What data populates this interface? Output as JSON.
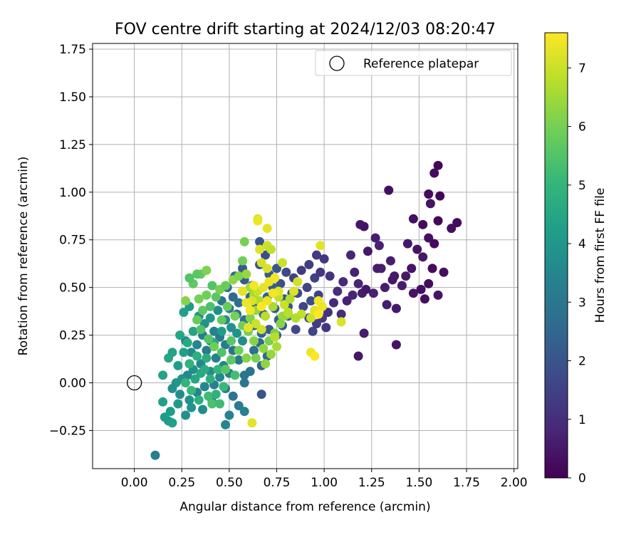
{
  "chart_data": {
    "type": "scatter",
    "title": "FOV centre drift starting at 2024/12/03 08:20:47",
    "xlabel": "Angular distance from reference (arcmin)",
    "ylabel": "Rotation from reference (arcmin)",
    "xlim": [
      -0.22,
      2.02
    ],
    "ylim": [
      -0.45,
      1.78
    ],
    "xticks": [
      0.0,
      0.25,
      0.5,
      0.75,
      1.0,
      1.25,
      1.5,
      1.75,
      2.0
    ],
    "xtick_labels": [
      "0.00",
      "0.25",
      "0.50",
      "0.75",
      "1.00",
      "1.25",
      "1.50",
      "1.75",
      "2.00"
    ],
    "yticks": [
      -0.25,
      0.0,
      0.25,
      0.5,
      0.75,
      1.0,
      1.25,
      1.5,
      1.75
    ],
    "ytick_labels": [
      "−0.25",
      "0.00",
      "0.25",
      "0.50",
      "0.75",
      "1.00",
      "1.25",
      "1.50",
      "1.75"
    ],
    "grid": true,
    "legend": {
      "position": "top-right",
      "entries": [
        "Reference platepar"
      ]
    },
    "reference_point": {
      "x": 0.0,
      "y": 0.0
    },
    "colorbar": {
      "label": "Hours from first FF file",
      "colormap": "viridis",
      "range": [
        0,
        7.6
      ],
      "ticks": [
        0,
        1,
        2,
        3,
        4,
        5,
        6,
        7
      ],
      "tick_labels": [
        "0",
        "1",
        "2",
        "3",
        "4",
        "5",
        "6",
        "7"
      ]
    },
    "points": [
      [
        1.6,
        1.14,
        0.1
      ],
      [
        1.58,
        1.1,
        0.2
      ],
      [
        1.34,
        1.01,
        0.3
      ],
      [
        1.55,
        0.99,
        0.2
      ],
      [
        1.61,
        0.98,
        0.1
      ],
      [
        1.56,
        0.94,
        0.4
      ],
      [
        1.47,
        0.86,
        0.3
      ],
      [
        1.52,
        0.83,
        0.2
      ],
      [
        1.6,
        0.85,
        0.1
      ],
      [
        1.7,
        0.84,
        0.2
      ],
      [
        1.67,
        0.81,
        0.3
      ],
      [
        1.19,
        0.83,
        0.5
      ],
      [
        1.21,
        0.82,
        0.4
      ],
      [
        1.27,
        0.76,
        0.6
      ],
      [
        1.44,
        0.73,
        0.5
      ],
      [
        1.55,
        0.76,
        0.3
      ],
      [
        1.58,
        0.73,
        0.2
      ],
      [
        1.49,
        0.7,
        0.4
      ],
      [
        1.52,
        0.66,
        0.5
      ],
      [
        1.29,
        0.72,
        0.7
      ],
      [
        1.35,
        0.64,
        0.6
      ],
      [
        1.23,
        0.69,
        0.5
      ],
      [
        1.14,
        0.67,
        0.8
      ],
      [
        1.16,
        0.58,
        0.7
      ],
      [
        1.28,
        0.6,
        0.6
      ],
      [
        1.37,
        0.56,
        0.5
      ],
      [
        1.46,
        0.6,
        0.4
      ],
      [
        1.41,
        0.51,
        0.6
      ],
      [
        1.51,
        0.49,
        0.3
      ],
      [
        1.55,
        0.52,
        0.2
      ],
      [
        1.6,
        0.46,
        0.4
      ],
      [
        1.63,
        0.58,
        0.3
      ],
      [
        1.57,
        0.6,
        0.2
      ],
      [
        1.2,
        0.47,
        0.6
      ],
      [
        1.26,
        0.47,
        0.7
      ],
      [
        1.22,
        0.49,
        0.5
      ],
      [
        1.32,
        0.5,
        0.6
      ],
      [
        1.36,
        0.54,
        0.5
      ],
      [
        1.18,
        0.52,
        0.8
      ],
      [
        1.1,
        0.53,
        0.9
      ],
      [
        1.07,
        0.48,
        1.0
      ],
      [
        1.15,
        0.46,
        0.8
      ],
      [
        1.12,
        0.43,
        0.7
      ],
      [
        1.33,
        0.41,
        0.6
      ],
      [
        1.38,
        0.39,
        0.5
      ],
      [
        1.05,
        0.42,
        0.9
      ],
      [
        1.02,
        0.37,
        1.1
      ],
      [
        1.09,
        0.36,
        1.0
      ],
      [
        1.21,
        0.26,
        0.6
      ],
      [
        1.38,
        0.2,
        0.4
      ],
      [
        1.18,
        0.14,
        0.5
      ],
      [
        1.47,
        0.47,
        0.4
      ],
      [
        1.53,
        0.44,
        0.3
      ],
      [
        1.43,
        0.56,
        0.5
      ],
      [
        1.3,
        0.6,
        0.6
      ],
      [
        0.96,
        0.67,
        1.3
      ],
      [
        1.0,
        0.65,
        1.2
      ],
      [
        0.92,
        0.62,
        1.4
      ],
      [
        0.88,
        0.59,
        1.3
      ],
      [
        0.95,
        0.55,
        1.5
      ],
      [
        0.98,
        0.58,
        1.2
      ],
      [
        1.03,
        0.56,
        1.1
      ],
      [
        0.84,
        0.55,
        1.5
      ],
      [
        0.91,
        0.5,
        1.6
      ],
      [
        0.86,
        0.47,
        1.7
      ],
      [
        0.97,
        0.46,
        1.5
      ],
      [
        0.93,
        0.43,
        1.8
      ],
      [
        0.89,
        0.4,
        1.6
      ],
      [
        0.95,
        0.38,
        1.4
      ],
      [
        0.99,
        0.34,
        1.3
      ],
      [
        0.92,
        0.34,
        1.5
      ],
      [
        0.85,
        0.28,
        1.7
      ],
      [
        0.94,
        0.27,
        1.6
      ],
      [
        1.01,
        0.29,
        1.2
      ],
      [
        0.96,
        0.31,
        1.4
      ],
      [
        0.81,
        0.4,
        1.9
      ],
      [
        0.79,
        0.44,
        2.0
      ],
      [
        0.83,
        0.47,
        1.8
      ],
      [
        0.77,
        0.52,
        1.9
      ],
      [
        0.8,
        0.58,
        1.7
      ],
      [
        0.75,
        0.6,
        2.1
      ],
      [
        0.71,
        0.57,
        2.2
      ],
      [
        0.66,
        0.62,
        2.0
      ],
      [
        0.69,
        0.67,
        1.8
      ],
      [
        0.66,
        0.74,
        2.0
      ],
      [
        0.73,
        0.5,
        2.3
      ],
      [
        0.7,
        0.45,
        2.4
      ],
      [
        0.74,
        0.39,
        2.2
      ],
      [
        0.68,
        0.36,
        2.5
      ],
      [
        0.64,
        0.4,
        2.3
      ],
      [
        0.61,
        0.45,
        2.6
      ],
      [
        0.62,
        0.51,
        2.4
      ],
      [
        0.58,
        0.54,
        2.2
      ],
      [
        0.57,
        0.6,
        2.1
      ],
      [
        0.53,
        0.56,
        2.5
      ],
      [
        0.49,
        0.5,
        2.7
      ],
      [
        0.52,
        0.45,
        2.6
      ],
      [
        0.55,
        0.42,
        2.8
      ],
      [
        0.46,
        0.43,
        2.9
      ],
      [
        0.5,
        0.39,
        3.0
      ],
      [
        0.54,
        0.36,
        2.7
      ],
      [
        0.58,
        0.33,
        2.8
      ],
      [
        0.63,
        0.3,
        2.5
      ],
      [
        0.67,
        0.26,
        2.4
      ],
      [
        0.71,
        0.28,
        2.2
      ],
      [
        0.75,
        0.25,
        2.1
      ],
      [
        0.78,
        0.3,
        2.0
      ],
      [
        0.81,
        0.35,
        1.9
      ],
      [
        0.76,
        0.33,
        2.3
      ],
      [
        0.66,
        0.21,
        2.6
      ],
      [
        0.63,
        0.17,
        2.8
      ],
      [
        0.7,
        0.14,
        2.6
      ],
      [
        0.67,
        0.09,
        2.4
      ],
      [
        0.61,
        0.06,
        2.9
      ],
      [
        0.58,
        0.04,
        3.0
      ],
      [
        0.55,
        0.12,
        3.1
      ],
      [
        0.52,
        0.17,
        2.9
      ],
      [
        0.48,
        0.2,
        3.2
      ],
      [
        0.45,
        0.24,
        3.0
      ],
      [
        0.42,
        0.27,
        3.3
      ],
      [
        0.4,
        0.22,
        3.4
      ],
      [
        0.36,
        0.25,
        3.2
      ],
      [
        0.33,
        0.2,
        3.5
      ],
      [
        0.3,
        0.16,
        3.6
      ],
      [
        0.27,
        0.22,
        3.4
      ],
      [
        0.38,
        0.17,
        3.1
      ],
      [
        0.43,
        0.13,
        3.3
      ],
      [
        0.47,
        0.09,
        3.5
      ],
      [
        0.5,
        0.05,
        3.2
      ],
      [
        0.45,
        0.03,
        3.6
      ],
      [
        0.4,
        0.06,
        3.7
      ],
      [
        0.35,
        0.1,
        3.5
      ],
      [
        0.31,
        0.07,
        3.8
      ],
      [
        0.28,
        0.04,
        3.6
      ],
      [
        0.25,
        0.02,
        3.9
      ],
      [
        0.22,
        0.0,
        4.0
      ],
      [
        0.2,
        -0.03,
        3.8
      ],
      [
        0.24,
        -0.06,
        3.7
      ],
      [
        0.29,
        -0.09,
        3.9
      ],
      [
        0.33,
        -0.05,
        3.4
      ],
      [
        0.37,
        -0.02,
        3.5
      ],
      [
        0.42,
        -0.01,
        3.3
      ],
      [
        0.48,
        -0.03,
        3.1
      ],
      [
        0.52,
        -0.07,
        3.0
      ],
      [
        0.55,
        -0.12,
        3.2
      ],
      [
        0.58,
        -0.15,
        3.3
      ],
      [
        0.5,
        -0.17,
        3.4
      ],
      [
        0.48,
        -0.22,
        3.5
      ],
      [
        0.41,
        -0.1,
        3.6
      ],
      [
        0.36,
        -0.14,
        3.7
      ],
      [
        0.3,
        -0.13,
        3.9
      ],
      [
        0.27,
        -0.17,
        3.8
      ],
      [
        0.23,
        -0.11,
        4.1
      ],
      [
        0.19,
        -0.15,
        4.2
      ],
      [
        0.15,
        -0.1,
        4.3
      ],
      [
        0.16,
        -0.18,
        4.2
      ],
      [
        0.18,
        -0.2,
        4.1
      ],
      [
        0.2,
        -0.21,
        4.3
      ],
      [
        0.15,
        0.04,
        4.4
      ],
      [
        0.18,
        0.13,
        4.5
      ],
      [
        0.2,
        0.16,
        4.4
      ],
      [
        0.23,
        0.09,
        4.2
      ],
      [
        0.26,
        0.16,
        4.3
      ],
      [
        0.24,
        0.25,
        4.5
      ],
      [
        0.28,
        0.21,
        4.6
      ],
      [
        0.31,
        0.27,
        4.4
      ],
      [
        0.26,
        0.37,
        4.3
      ],
      [
        0.29,
        0.4,
        4.1
      ],
      [
        0.34,
        0.35,
        3.9
      ],
      [
        0.37,
        0.31,
        3.8
      ],
      [
        0.4,
        0.34,
        4.0
      ],
      [
        0.44,
        0.38,
        3.7
      ],
      [
        0.48,
        0.33,
        3.6
      ],
      [
        0.51,
        0.29,
        3.8
      ],
      [
        0.54,
        0.26,
        3.9
      ],
      [
        0.57,
        0.22,
        3.7
      ],
      [
        0.46,
        0.27,
        4.2
      ],
      [
        0.42,
        0.21,
        4.6
      ],
      [
        0.38,
        0.13,
        4.7
      ],
      [
        0.33,
        0.14,
        4.8
      ],
      [
        0.29,
        0.1,
        4.9
      ],
      [
        0.35,
        0.05,
        4.6
      ],
      [
        0.4,
        0.02,
        4.8
      ],
      [
        0.44,
        0.07,
        5.0
      ],
      [
        0.37,
        0.07,
        4.7
      ],
      [
        0.32,
        0.02,
        4.5
      ],
      [
        0.27,
        0.0,
        5.0
      ],
      [
        0.3,
        -0.04,
        5.1
      ],
      [
        0.34,
        -0.09,
        4.8
      ],
      [
        0.39,
        -0.07,
        5.2
      ],
      [
        0.43,
        -0.06,
        4.9
      ],
      [
        0.47,
        -0.02,
        5.1
      ],
      [
        0.53,
        0.04,
        5.3
      ],
      [
        0.58,
        0.0,
        3.0
      ],
      [
        0.62,
        -0.21,
        7.3
      ],
      [
        0.11,
        -0.38,
        3.2
      ],
      [
        0.67,
        -0.06,
        2.0
      ],
      [
        0.41,
        -0.11,
        5.4
      ],
      [
        0.45,
        -0.11,
        5.2
      ],
      [
        0.48,
        0.07,
        5.6
      ],
      [
        0.51,
        0.12,
        5.7
      ],
      [
        0.46,
        0.16,
        5.5
      ],
      [
        0.42,
        0.19,
        5.9
      ],
      [
        0.39,
        0.23,
        5.6
      ],
      [
        0.35,
        0.28,
        5.5
      ],
      [
        0.33,
        0.33,
        5.8
      ],
      [
        0.36,
        0.38,
        5.7
      ],
      [
        0.4,
        0.4,
        5.4
      ],
      [
        0.43,
        0.45,
        5.6
      ],
      [
        0.38,
        0.46,
        5.9
      ],
      [
        0.34,
        0.44,
        6.0
      ],
      [
        0.31,
        0.52,
        5.7
      ],
      [
        0.35,
        0.57,
        5.8
      ],
      [
        0.38,
        0.59,
        6.1
      ],
      [
        0.33,
        0.57,
        5.6
      ],
      [
        0.29,
        0.55,
        5.5
      ],
      [
        0.27,
        0.43,
        6.2
      ],
      [
        0.41,
        0.51,
        5.5
      ],
      [
        0.45,
        0.49,
        6.0
      ],
      [
        0.48,
        0.51,
        5.8
      ],
      [
        0.52,
        0.54,
        6.3
      ],
      [
        0.55,
        0.56,
        6.1
      ],
      [
        0.59,
        0.57,
        6.4
      ],
      [
        0.57,
        0.64,
        5.9
      ],
      [
        0.58,
        0.74,
        6.0
      ],
      [
        0.61,
        0.5,
        6.5
      ],
      [
        0.63,
        0.46,
        6.6
      ],
      [
        0.66,
        0.43,
        6.7
      ],
      [
        0.64,
        0.38,
        6.4
      ],
      [
        0.69,
        0.35,
        6.8
      ],
      [
        0.73,
        0.4,
        6.6
      ],
      [
        0.76,
        0.45,
        6.9
      ],
      [
        0.79,
        0.41,
        7.0
      ],
      [
        0.82,
        0.44,
        6.7
      ],
      [
        0.78,
        0.35,
        6.5
      ],
      [
        0.81,
        0.36,
        6.3
      ],
      [
        0.77,
        0.31,
        6.2
      ],
      [
        0.74,
        0.26,
        6.1
      ],
      [
        0.71,
        0.22,
        6.0
      ],
      [
        0.68,
        0.18,
        6.3
      ],
      [
        0.63,
        0.22,
        6.2
      ],
      [
        0.6,
        0.27,
        6.0
      ],
      [
        0.57,
        0.3,
        5.9
      ],
      [
        0.61,
        0.34,
        6.1
      ],
      [
        0.53,
        0.35,
        6.0
      ],
      [
        0.49,
        0.4,
        5.8
      ],
      [
        0.46,
        0.33,
        5.7
      ],
      [
        0.51,
        0.22,
        5.6
      ],
      [
        0.55,
        0.17,
        5.9
      ],
      [
        0.59,
        0.13,
        6.2
      ],
      [
        0.64,
        0.13,
        6.0
      ],
      [
        0.69,
        0.1,
        6.3
      ],
      [
        0.72,
        0.15,
        6.4
      ],
      [
        0.75,
        0.19,
        6.6
      ],
      [
        0.74,
        0.24,
        6.8
      ],
      [
        0.67,
        0.28,
        7.1
      ],
      [
        0.64,
        0.31,
        7.0
      ],
      [
        0.6,
        0.29,
        7.3
      ],
      [
        0.62,
        0.43,
        7.2
      ],
      [
        0.65,
        0.48,
        7.0
      ],
      [
        0.68,
        0.5,
        7.3
      ],
      [
        0.71,
        0.53,
        7.4
      ],
      [
        0.74,
        0.55,
        7.5
      ],
      [
        0.7,
        0.6,
        7.2
      ],
      [
        0.67,
        0.63,
        7.1
      ],
      [
        0.66,
        0.7,
        7.2
      ],
      [
        0.7,
        0.72,
        7.0
      ],
      [
        0.72,
        0.7,
        6.9
      ],
      [
        0.65,
        0.86,
        7.2
      ],
      [
        0.65,
        0.85,
        7.4
      ],
      [
        0.7,
        0.81,
        7.3
      ],
      [
        0.78,
        0.63,
        7.0
      ],
      [
        0.76,
        0.48,
        7.3
      ],
      [
        0.73,
        0.47,
        7.5
      ],
      [
        0.7,
        0.43,
        7.4
      ],
      [
        0.67,
        0.4,
        7.6
      ],
      [
        0.61,
        0.38,
        7.5
      ],
      [
        0.59,
        0.42,
        7.4
      ],
      [
        0.57,
        0.48,
        7.3
      ],
      [
        0.63,
        0.51,
        7.5
      ],
      [
        0.84,
        0.48,
        7.2
      ],
      [
        0.86,
        0.53,
        7.1
      ],
      [
        0.93,
        0.34,
        7.0
      ],
      [
        0.95,
        0.38,
        7.3
      ],
      [
        0.97,
        0.43,
        7.5
      ],
      [
        0.99,
        0.4,
        7.4
      ],
      [
        0.97,
        0.36,
        7.6
      ],
      [
        0.93,
        0.16,
        7.4
      ],
      [
        0.95,
        0.14,
        7.6
      ],
      [
        0.98,
        0.72,
        7.3
      ],
      [
        1.09,
        0.32,
        7.2
      ],
      [
        0.88,
        0.36,
        6.9
      ],
      [
        0.85,
        0.34,
        6.7
      ],
      [
        0.79,
        0.35,
        6.4
      ],
      [
        0.81,
        0.37,
        6.8
      ]
    ]
  }
}
